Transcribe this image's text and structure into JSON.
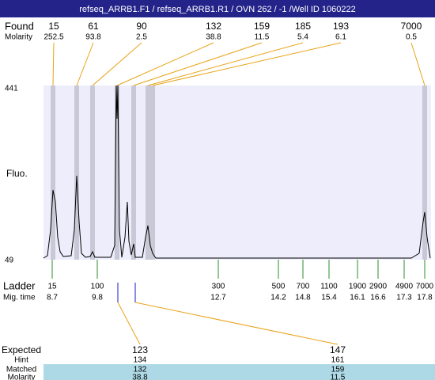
{
  "header": {
    "title": "refseq_ARRB1.F1 / refseq_ARRB1.R1 / OVN 262 / -1 /Well ID 1060222"
  },
  "found": {
    "label": "Found",
    "molarity_label": "Molarity",
    "peaks": [
      {
        "size": 15,
        "molarity": 252.5
      },
      {
        "size": 61,
        "molarity": 93.8
      },
      {
        "size": 90,
        "molarity": 2.5
      },
      {
        "size": 132,
        "molarity": 38.8
      },
      {
        "size": 159,
        "molarity": 11.5
      },
      {
        "size": 185,
        "molarity": 5.4
      },
      {
        "size": 193,
        "molarity": 6.1
      },
      {
        "size": 7000,
        "molarity": 0.5
      }
    ]
  },
  "axis": {
    "label": "Fluo.",
    "max": 441,
    "min": 49
  },
  "ladder": {
    "label": "Ladder",
    "time_label": "Mig. time",
    "entries": [
      {
        "size": 15,
        "time": 8.7
      },
      {
        "size": 100,
        "time": 9.8
      },
      {
        "size": 300,
        "time": 12.7
      },
      {
        "size": 500,
        "time": 14.2
      },
      {
        "size": 700,
        "time": 14.8
      },
      {
        "size": 1100,
        "time": 15.4
      },
      {
        "size": 1900,
        "time": 16.1
      },
      {
        "size": 2900,
        "time": 16.6
      },
      {
        "size": 4900,
        "time": 17.3
      },
      {
        "size": 7000,
        "time": 17.8
      }
    ]
  },
  "table": {
    "labels": [
      "Expected",
      "Hint",
      "Matched",
      "Molarity"
    ],
    "columns": [
      {
        "expected": 123,
        "hint": 134,
        "matched": 132,
        "molarity": 38.8
      },
      {
        "expected": 147,
        "hint": 161,
        "matched": 159,
        "molarity": 11.5
      }
    ]
  }
}
